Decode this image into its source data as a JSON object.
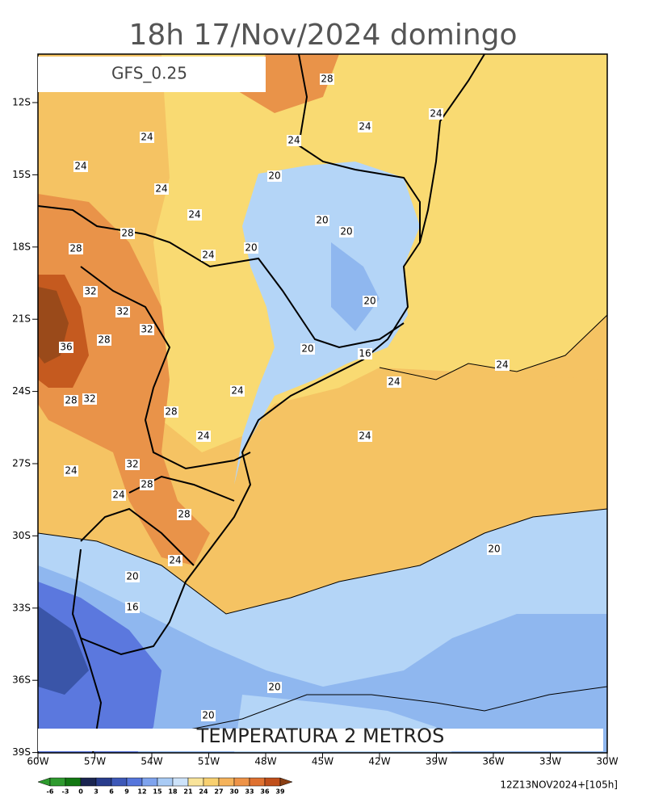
{
  "header": {
    "title": "18h 17/Nov/2024 domingo",
    "model": "GFS_0.25"
  },
  "footer": {
    "field": "TEMPERATURA 2 METROS",
    "run": "12Z13NOV2024+[105h]"
  },
  "lat_labels": [
    "12S",
    "15S",
    "18S",
    "21S",
    "24S",
    "27S",
    "30S",
    "33S",
    "36S",
    "39S"
  ],
  "lon_labels": [
    "60W",
    "57W",
    "54W",
    "51W",
    "48W",
    "45W",
    "42W",
    "39W",
    "36W",
    "33W",
    "30W"
  ],
  "colorbar": [
    "-6",
    "-3",
    "0",
    "3",
    "6",
    "9",
    "12",
    "15",
    "18",
    "21",
    "24",
    "27",
    "30",
    "33",
    "36",
    "39"
  ],
  "contour_labels": [
    "28",
    "24",
    "24",
    "24",
    "24",
    "24",
    "24",
    "24",
    "20",
    "20",
    "20",
    "20",
    "20",
    "20",
    "28",
    "28",
    "32",
    "32",
    "32",
    "36",
    "28",
    "28",
    "32",
    "24",
    "28",
    "24",
    "24",
    "24",
    "24",
    "32",
    "28",
    "24",
    "28",
    "24",
    "20",
    "16",
    "20",
    "20",
    "16",
    "24",
    "20",
    "24"
  ]
}
